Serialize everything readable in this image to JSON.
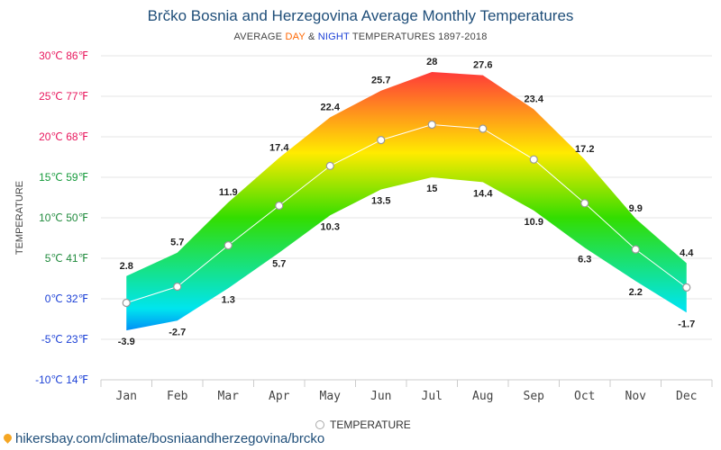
{
  "header": {
    "title": "Brčko Bosnia and Herzegovina Average Monthly Temperatures",
    "subtitle_pre": "AVERAGE ",
    "subtitle_day": "DAY",
    "subtitle_mid": " & ",
    "subtitle_night": "NIGHT",
    "subtitle_post": " TEMPERATURES 1897-2018"
  },
  "legend": {
    "label": "TEMPERATURE"
  },
  "footer": {
    "source": "hikersbay.com/climate/bosniaandherzegovina/brcko"
  },
  "chart_data": {
    "type": "area",
    "ylabel": "TEMPERATURE",
    "ylim": [
      -10,
      30
    ],
    "y_ticks": [
      {
        "value": 30,
        "label": "30℃ 86℉"
      },
      {
        "value": 25,
        "label": "25℃ 77℉"
      },
      {
        "value": 20,
        "label": "20℃ 68℉"
      },
      {
        "value": 15,
        "label": "15℃ 59℉"
      },
      {
        "value": 10,
        "label": "10℃ 50℉"
      },
      {
        "value": 5,
        "label": "5℃ 41℉"
      },
      {
        "value": 0,
        "label": "0℃ 32℉"
      },
      {
        "value": -5,
        "label": "-5℃ 23℉"
      },
      {
        "value": -10,
        "label": "-10℃ 14℉"
      }
    ],
    "categories": [
      "Jan",
      "Feb",
      "Mar",
      "Apr",
      "May",
      "Jun",
      "Jul",
      "Aug",
      "Sep",
      "Oct",
      "Nov",
      "Dec"
    ],
    "series": [
      {
        "values": [
          2.8,
          5.7,
          11.9,
          17.4,
          22.4,
          25.7,
          28,
          27.6,
          23.4,
          17.2,
          9.9,
          4.4
        ]
      },
      {
        "values": [
          -3.9,
          -2.7,
          1.3,
          5.7,
          10.3,
          13.5,
          15,
          14.4,
          10.9,
          6.3,
          2.2,
          -1.7
        ]
      },
      {
        "name": "TEMPERATURE",
        "values": [
          -0.5,
          1.5,
          6.6,
          11.5,
          16.4,
          19.6,
          21.5,
          21.0,
          17.2,
          11.8,
          6.1,
          1.4
        ]
      }
    ],
    "colors": {
      "hot": "#ff1744",
      "warm": "#ffeb00",
      "mild": "#33dd00",
      "cool": "#00e5ee",
      "cold": "#0033ff"
    },
    "grid": true
  }
}
